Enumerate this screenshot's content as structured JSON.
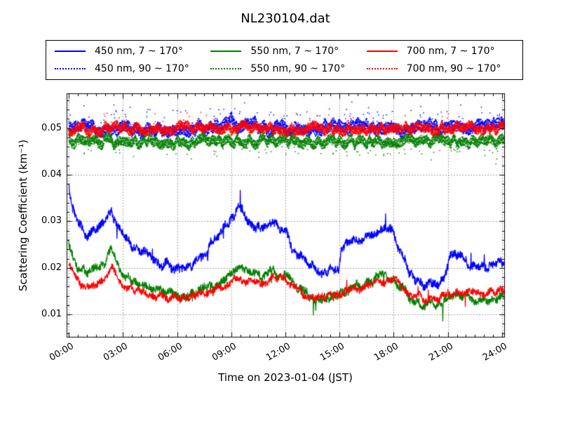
{
  "figure": {
    "background": "#ffffff",
    "frame_color": "#000000"
  },
  "chart_data": {
    "type": "line",
    "title": "NL230104.dat",
    "xlabel": "Time on 2023-01-04 (JST)",
    "ylabel": "Scattering Coefficient (km⁻¹)",
    "xlim": [
      -0.12,
      24.12
    ],
    "ylim": [
      0.0052,
      0.0575
    ],
    "grid": {
      "show": true,
      "color": "#444444",
      "style": "dotted"
    },
    "x_ticks": {
      "hours": [
        0,
        3,
        6,
        9,
        12,
        15,
        18,
        21,
        24
      ],
      "labels": [
        "00:00",
        "03:00",
        "06:00",
        "09:00",
        "12:00",
        "15:00",
        "18:00",
        "21:00",
        "24:00"
      ],
      "minor_step_hours": 0.5,
      "label_rotation_deg": 30
    },
    "y_ticks": {
      "values": [
        0.01,
        0.02,
        0.03,
        0.04,
        0.05
      ],
      "labels": [
        "0.01",
        "0.02",
        "0.03",
        "0.04",
        "0.05"
      ],
      "minor_step": 0.002
    },
    "legend_position": "top",
    "series": [
      {
        "label": "450 nm, 7 ~ 170°",
        "color": "#0000ff",
        "line_style": "solid",
        "seed": 11,
        "noise_amp": 0.0011,
        "spike_prob": 0.005,
        "spike_scale": 2.2,
        "spike_sym": true,
        "anchors": {
          "x": [
            0,
            0.15,
            0.5,
            1.0,
            1.5,
            2.0,
            2.35,
            2.7,
            3.0,
            3.5,
            4.0,
            4.5,
            5.0,
            5.5,
            6.0,
            6.5,
            7.0,
            7.5,
            8.0,
            8.5,
            9.0,
            9.4,
            9.8,
            10.3,
            10.8,
            11.3,
            11.6,
            12.0,
            12.4,
            12.8,
            13.2,
            13.6,
            14.0,
            14.5,
            14.95,
            15.1,
            15.5,
            15.8,
            16.2,
            16.6,
            17.0,
            17.3,
            17.6,
            18.0,
            18.4,
            18.8,
            19.2,
            19.6,
            20.0,
            20.4,
            20.8,
            21.1,
            21.45,
            21.8,
            22.2,
            22.6,
            23.0,
            23.4,
            23.8,
            24.1
          ],
          "y": [
            0.0375,
            0.034,
            0.0295,
            0.027,
            0.0283,
            0.0298,
            0.0322,
            0.0295,
            0.0278,
            0.0248,
            0.0235,
            0.0222,
            0.0212,
            0.0205,
            0.02,
            0.0198,
            0.021,
            0.0232,
            0.0258,
            0.0282,
            0.0306,
            0.0336,
            0.0305,
            0.029,
            0.0283,
            0.03,
            0.029,
            0.0282,
            0.0242,
            0.0222,
            0.021,
            0.0198,
            0.019,
            0.0196,
            0.0202,
            0.0247,
            0.0252,
            0.0266,
            0.0252,
            0.0266,
            0.027,
            0.0288,
            0.0282,
            0.0272,
            0.0235,
            0.0192,
            0.0172,
            0.0165,
            0.0168,
            0.0163,
            0.018,
            0.0228,
            0.0234,
            0.0218,
            0.0208,
            0.02,
            0.0202,
            0.0207,
            0.0214,
            0.022
          ]
        }
      },
      {
        "label": "450 nm, 90 ~ 170°",
        "color": "#0000ff",
        "line_style": "dotted",
        "seed": 22,
        "noise_amp": 0.0014,
        "spike_prob": 0.02,
        "spike_scale": 2.0,
        "spike_sym": false,
        "anchors": {
          "x": [
            0,
            0.4,
            0.9,
            2,
            4,
            6,
            8.5,
            9.0,
            9.4,
            10.2,
            11,
            12,
            13.5,
            14.9,
            15.6,
            16.5,
            17.5,
            19,
            20.5,
            22,
            23.3,
            24.1
          ],
          "y": [
            0.0502,
            0.0512,
            0.0504,
            0.05,
            0.0499,
            0.0501,
            0.0506,
            0.0516,
            0.0506,
            0.0509,
            0.0501,
            0.0502,
            0.0499,
            0.0505,
            0.05,
            0.0507,
            0.05,
            0.0499,
            0.0502,
            0.05,
            0.0507,
            0.0503
          ]
        }
      },
      {
        "label": "550 nm, 7 ~ 170°",
        "color": "#008000",
        "line_style": "solid",
        "seed": 33,
        "noise_amp": 0.001,
        "spike_prob": 0.006,
        "spike_scale": -2.6,
        "spike_sym": false,
        "anchors": {
          "x": [
            0,
            0.15,
            0.5,
            1.0,
            1.5,
            2.0,
            2.35,
            2.7,
            3.0,
            3.5,
            4.0,
            4.5,
            5.0,
            5.5,
            6.0,
            6.5,
            7.0,
            7.5,
            8.0,
            8.5,
            9.0,
            9.4,
            9.8,
            10.3,
            10.8,
            11.3,
            11.6,
            12.0,
            12.4,
            12.8,
            13.2,
            13.6,
            14.0,
            14.5,
            14.95,
            15.1,
            15.5,
            15.8,
            16.2,
            16.6,
            17.0,
            17.3,
            17.6,
            18.0,
            18.4,
            18.8,
            19.2,
            19.6,
            20.0,
            20.4,
            20.8,
            21.1,
            21.45,
            21.8,
            22.2,
            22.6,
            23.0,
            23.4,
            23.8,
            24.1
          ],
          "y": [
            0.0253,
            0.0228,
            0.0202,
            0.019,
            0.0196,
            0.0208,
            0.024,
            0.021,
            0.0188,
            0.0172,
            0.0162,
            0.0155,
            0.015,
            0.0146,
            0.0141,
            0.014,
            0.0145,
            0.0153,
            0.016,
            0.0175,
            0.019,
            0.0203,
            0.019,
            0.0184,
            0.0181,
            0.0192,
            0.0189,
            0.0186,
            0.0168,
            0.015,
            0.0142,
            0.0136,
            0.0131,
            0.0135,
            0.0146,
            0.015,
            0.0152,
            0.0158,
            0.016,
            0.0166,
            0.0175,
            0.0186,
            0.0182,
            0.0176,
            0.0158,
            0.0139,
            0.0128,
            0.0121,
            0.0124,
            0.0116,
            0.013,
            0.0136,
            0.0146,
            0.0141,
            0.0136,
            0.0131,
            0.0129,
            0.0133,
            0.0134,
            0.0139
          ]
        }
      },
      {
        "label": "550 nm, 90 ~ 170°",
        "color": "#008000",
        "line_style": "dotted",
        "seed": 44,
        "noise_amp": 0.0012,
        "spike_prob": 0.015,
        "spike_scale": -1.8,
        "spike_sym": false,
        "anchors": {
          "x": [
            0,
            3,
            6,
            9,
            12,
            15,
            18,
            21,
            24.1
          ],
          "y": [
            0.0474,
            0.0471,
            0.047,
            0.0473,
            0.0472,
            0.0471,
            0.0473,
            0.0472,
            0.0473
          ]
        }
      },
      {
        "label": "700 nm, 7 ~ 170°",
        "color": "#ff0000",
        "line_style": "solid",
        "seed": 55,
        "noise_amp": 0.0009,
        "spike_prob": 0.004,
        "spike_scale": 2.0,
        "spike_sym": true,
        "anchors": {
          "x": [
            0,
            0.15,
            0.5,
            1.0,
            1.5,
            2.0,
            2.35,
            2.7,
            3.0,
            3.5,
            4.0,
            4.5,
            5.0,
            5.5,
            6.0,
            6.5,
            7.0,
            7.5,
            8.0,
            8.5,
            9.0,
            9.4,
            9.8,
            10.3,
            10.8,
            11.3,
            11.6,
            12.0,
            12.4,
            12.8,
            13.2,
            13.6,
            14.0,
            14.5,
            14.95,
            15.1,
            15.5,
            15.8,
            16.2,
            16.6,
            17.0,
            17.3,
            17.6,
            18.0,
            18.4,
            18.8,
            19.2,
            19.6,
            20.0,
            20.4,
            20.8,
            21.1,
            21.45,
            21.8,
            22.2,
            22.6,
            23.0,
            23.4,
            23.8,
            24.1
          ],
          "y": [
            0.021,
            0.0193,
            0.0172,
            0.016,
            0.0166,
            0.0178,
            0.0205,
            0.0185,
            0.0165,
            0.0156,
            0.015,
            0.0146,
            0.0141,
            0.0137,
            0.0135,
            0.0135,
            0.0139,
            0.0145,
            0.0151,
            0.0159,
            0.0168,
            0.0179,
            0.0173,
            0.0171,
            0.0169,
            0.0178,
            0.0178,
            0.0177,
            0.0161,
            0.0147,
            0.0141,
            0.0137,
            0.0135,
            0.0138,
            0.0145,
            0.0147,
            0.015,
            0.0154,
            0.0156,
            0.016,
            0.0166,
            0.0175,
            0.0174,
            0.0173,
            0.0163,
            0.015,
            0.0143,
            0.0136,
            0.0131,
            0.0134,
            0.0138,
            0.0141,
            0.0149,
            0.0146,
            0.0144,
            0.0144,
            0.0145,
            0.0147,
            0.0149,
            0.015
          ]
        }
      },
      {
        "label": "700 nm, 90 ~ 170°",
        "color": "#ff0000",
        "line_style": "dotted",
        "seed": 66,
        "noise_amp": 0.0011,
        "spike_prob": 0.012,
        "spike_scale": 1.6,
        "spike_sym": false,
        "anchors": {
          "x": [
            0,
            3,
            6,
            9,
            12,
            15,
            18,
            21,
            24.1
          ],
          "y": [
            0.05,
            0.0499,
            0.05,
            0.0501,
            0.0499,
            0.05,
            0.0501,
            0.05,
            0.05
          ]
        }
      }
    ]
  }
}
